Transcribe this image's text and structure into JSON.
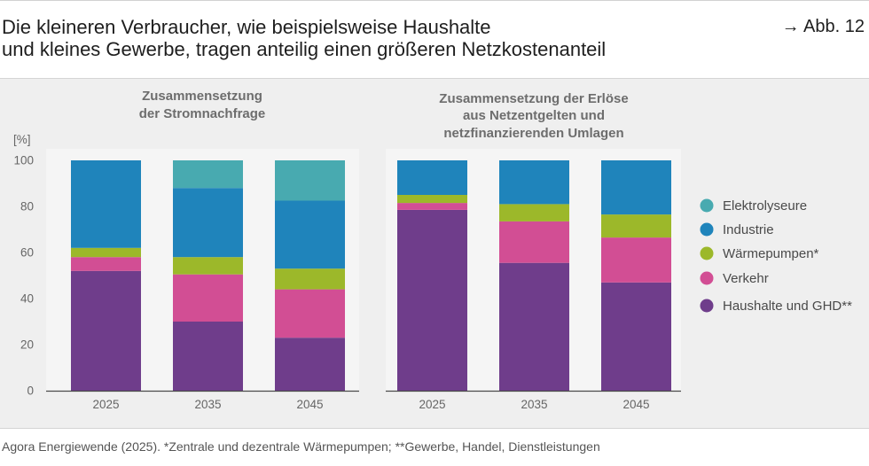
{
  "header": {
    "title_lines": [
      "Die kleineren Verbraucher, wie beispielsweise Haushalte",
      "und kleines Gewerbe, tragen anteilig einen größeren Netzkostenanteil"
    ],
    "figure_ref": "→ Abb. 12"
  },
  "chart_data": [
    {
      "type": "bar",
      "stacked": true,
      "title_lines": [
        "Zusammensetzung",
        "der Stromnachfrage"
      ],
      "ylabel": "[%]",
      "ylim": [
        0,
        100
      ],
      "yticks": [
        0,
        20,
        40,
        60,
        80,
        100
      ],
      "categories": [
        "2025",
        "2035",
        "2045"
      ],
      "grid": false,
      "series": [
        {
          "name": "Haushalte und GHD**",
          "color": "#6f3d8b",
          "values": [
            52,
            30,
            23
          ]
        },
        {
          "name": "Verkehr",
          "color": "#d24e94",
          "values": [
            6,
            20.5,
            21
          ]
        },
        {
          "name": "Wärmepumpen*",
          "color": "#9cb82a",
          "values": [
            4,
            7.5,
            9
          ]
        },
        {
          "name": "Industrie",
          "color": "#1f84bb",
          "values": [
            38,
            30,
            29.5
          ]
        },
        {
          "name": "Elektrolyseure",
          "color": "#48aab0",
          "values": [
            0,
            12,
            17.5
          ]
        }
      ]
    },
    {
      "type": "bar",
      "stacked": true,
      "title_lines": [
        "Zusammensetzung der Erlöse",
        "aus Netzentgelten und",
        "netzfinanzierenden Umlagen"
      ],
      "ylim": [
        0,
        100
      ],
      "categories": [
        "2025",
        "2035",
        "2045"
      ],
      "grid": false,
      "series": [
        {
          "name": "Haushalte und GHD**",
          "color": "#6f3d8b",
          "values": [
            78.5,
            55.5,
            47
          ]
        },
        {
          "name": "Verkehr",
          "color": "#d24e94",
          "values": [
            3,
            18,
            19.5
          ]
        },
        {
          "name": "Wärmepumpen*",
          "color": "#9cb82a",
          "values": [
            3.5,
            7.5,
            10
          ]
        },
        {
          "name": "Industrie",
          "color": "#1f84bb",
          "values": [
            15,
            19,
            23.5
          ]
        }
      ]
    }
  ],
  "legend": {
    "position": "right",
    "items": [
      {
        "name": "Elektrolyseure",
        "color": "#48aab0"
      },
      {
        "name": "Industrie",
        "color": "#1f84bb"
      },
      {
        "name": "Wärmepumpen*",
        "color": "#9cb82a"
      },
      {
        "name": "Verkehr",
        "color": "#d24e94"
      },
      {
        "name": "Haushalte und GHD**",
        "color": "#6f3d8b"
      }
    ]
  },
  "footer": {
    "source": "Agora Energiewende (2025). *Zentrale und dezentrale Wärmepumpen; **Gewerbe, Handel, Dienstleistungen"
  }
}
